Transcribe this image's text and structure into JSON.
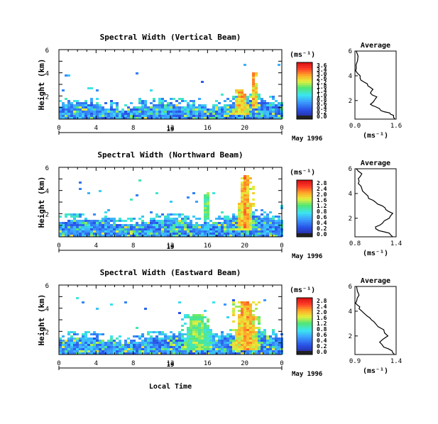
{
  "figure": {
    "date_label": "May 1996",
    "day_label": "19",
    "xlabel": "Local Time",
    "xticks": [
      "0",
      "4",
      "8",
      "12",
      "16",
      "20",
      "0"
    ],
    "yticks": [
      "2",
      "4",
      "6"
    ],
    "ylabel": "Height (km)",
    "unit_label": "(ms⁻¹)",
    "avg_title": "Average",
    "avg_xlabel": "(ms⁻¹)"
  },
  "chart_data": [
    {
      "type": "heatmap",
      "title": "Spectral Width (Vertical Beam)",
      "xlabel": "",
      "ylabel": "Height (km)",
      "xlim": [
        0,
        24
      ],
      "ylim": [
        0,
        6
      ],
      "colorbar": {
        "unit": "(ms⁻¹)",
        "ticks": [
          "3.6",
          "3.4",
          "3.0",
          "2.6",
          "2.2",
          "1.8",
          "1.4",
          "1.0",
          "0.8",
          "0.6",
          "0.4",
          "0.2",
          "0.0"
        ]
      },
      "features": [
        {
          "x": [
            0,
            24
          ],
          "y": [
            0.3,
            1.6
          ],
          "level": "blue background echoes with cyan-green patches"
        },
        {
          "x": [
            18.5,
            20.5
          ],
          "y": [
            0.4,
            2.6
          ],
          "level": "red high width"
        },
        {
          "x": [
            20.5,
            21.3
          ],
          "y": [
            1.0,
            4.1
          ],
          "level": "red spike"
        }
      ]
    },
    {
      "type": "line",
      "title": "Average",
      "xlim": [
        0,
        1.6
      ],
      "ylim": [
        0.5,
        6
      ],
      "xticks": [
        "0.0",
        "1.6"
      ],
      "yticks": [
        "2",
        "4",
        "6"
      ],
      "series": [
        {
          "x": [
            1.55,
            1.5,
            1.35,
            1.0,
            0.8,
            0.6,
            0.75,
            0.85,
            0.6,
            0.7,
            0.5,
            0.35,
            0.2,
            0.1,
            0.05,
            0.1,
            0.05
          ],
          "y": [
            0.5,
            0.8,
            1.0,
            1.2,
            1.5,
            1.7,
            2.0,
            2.3,
            2.6,
            2.9,
            3.2,
            3.5,
            3.8,
            4.2,
            4.6,
            5.2,
            6.0
          ]
        }
      ]
    },
    {
      "type": "heatmap",
      "title": "Spectral Width (Northward Beam)",
      "xlabel": "",
      "ylabel": "Height (km)",
      "xlim": [
        0,
        24
      ],
      "ylim": [
        0,
        6
      ],
      "colorbar": {
        "unit": "(ms⁻¹)",
        "ticks": [
          "2.8",
          "2.4",
          "2.0",
          "1.6",
          "1.2",
          "0.8",
          "0.6",
          "0.4",
          "0.2",
          "0.0"
        ]
      },
      "features": [
        {
          "x": [
            0,
            24
          ],
          "y": [
            0.3,
            2.0
          ],
          "level": "blue-cyan echoes"
        },
        {
          "x": [
            15.3,
            16.2
          ],
          "y": [
            1.5,
            4.0
          ],
          "level": "orange plume"
        },
        {
          "x": [
            19,
            20.8
          ],
          "y": [
            0.6,
            5.4
          ],
          "level": "red plume"
        }
      ]
    },
    {
      "type": "line",
      "title": "Average",
      "xlim": [
        0.8,
        1.4
      ],
      "ylim": [
        0.5,
        6
      ],
      "xticks": [
        "0.8",
        "1.4"
      ],
      "yticks": [
        "2",
        "4",
        "6"
      ],
      "series": [
        {
          "x": [
            1.35,
            1.3,
            1.15,
            1.1,
            1.2,
            1.3,
            1.35,
            1.25,
            1.2,
            1.1,
            1.0,
            0.95,
            0.9,
            0.85,
            0.85,
            0.9,
            0.82
          ],
          "y": [
            0.5,
            0.8,
            1.0,
            1.3,
            1.6,
            2.0,
            2.4,
            2.7,
            3.0,
            3.3,
            3.6,
            4.0,
            4.4,
            4.8,
            5.2,
            5.6,
            6.0
          ]
        }
      ]
    },
    {
      "type": "heatmap",
      "title": "Spectral Width (Eastward Beam)",
      "xlabel": "Local Time",
      "ylabel": "Height (km)",
      "xlim": [
        0,
        24
      ],
      "ylim": [
        0,
        6
      ],
      "colorbar": {
        "unit": "(ms⁻¹)",
        "ticks": [
          "2.8",
          "2.4",
          "2.0",
          "1.6",
          "1.2",
          "0.8",
          "0.6",
          "0.4",
          "0.2",
          "0.0"
        ]
      },
      "features": [
        {
          "x": [
            0,
            24
          ],
          "y": [
            0.3,
            1.6
          ],
          "level": "blue echoes"
        },
        {
          "x": [
            13,
            16.5
          ],
          "y": [
            0.5,
            3.6
          ],
          "level": "orange-yellow plumes"
        },
        {
          "x": [
            18.5,
            21.5
          ],
          "y": [
            0.5,
            4.6
          ],
          "level": "red plume"
        }
      ]
    },
    {
      "type": "line",
      "title": "Average",
      "xlim": [
        0.9,
        1.4
      ],
      "ylim": [
        0.5,
        6
      ],
      "xticks": [
        "0.9",
        "1.4"
      ],
      "yticks": [
        "2",
        "4",
        "6"
      ],
      "series": [
        {
          "x": [
            1.38,
            1.35,
            1.25,
            1.2,
            1.3,
            1.25,
            1.15,
            1.1,
            1.05,
            1.0,
            0.95,
            0.93,
            0.92,
            0.95,
            0.92
          ],
          "y": [
            0.5,
            0.8,
            1.1,
            1.5,
            2.0,
            2.5,
            3.0,
            3.3,
            3.6,
            3.9,
            4.2,
            4.5,
            4.8,
            5.3,
            6.0
          ]
        }
      ]
    }
  ]
}
